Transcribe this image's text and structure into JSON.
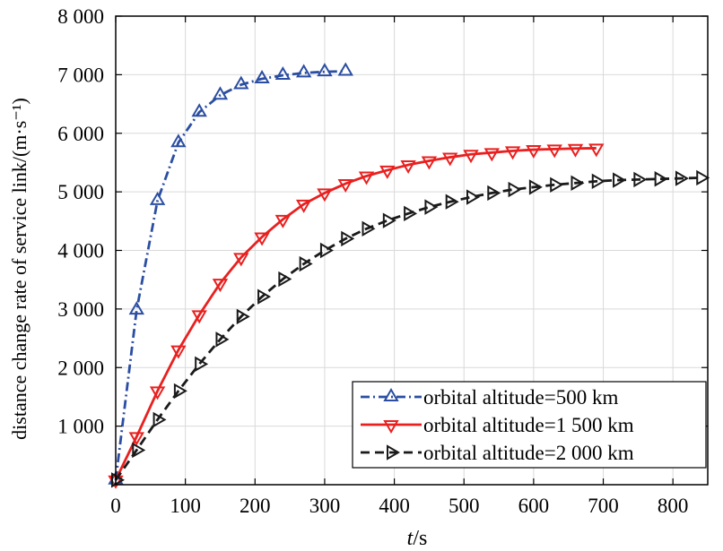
{
  "chart_data": {
    "type": "line",
    "xlabel_italic": "t",
    "xlabel_unit": "/s",
    "ylabel": "distance change rate of service link/(m·s⁻¹)",
    "xlim": [
      0,
      850
    ],
    "ylim": [
      0,
      8000
    ],
    "x_ticks": [
      0,
      100,
      200,
      300,
      400,
      500,
      600,
      700,
      800
    ],
    "y_ticks": [
      1000,
      2000,
      3000,
      4000,
      5000,
      6000,
      7000,
      8000
    ],
    "x_tick_labels": [
      "0",
      "100",
      "200",
      "300",
      "400",
      "500",
      "600",
      "700",
      "800"
    ],
    "y_tick_labels": [
      "1 000",
      "2 000",
      "3 000",
      "4 000",
      "5 000",
      "6 000",
      "7 000",
      "8 000"
    ],
    "grid": true,
    "legend_position": "bottom-right",
    "series": [
      {
        "name": "orbital altitude=500 km",
        "color": "#2b4ea2",
        "line_style": "dash-dot",
        "marker": "triangle-up",
        "x": [
          0,
          30,
          60,
          90,
          120,
          150,
          180,
          210,
          240,
          270,
          300,
          330
        ],
        "y": [
          80,
          2980,
          4850,
          5840,
          6360,
          6650,
          6830,
          6930,
          6990,
          7030,
          7050,
          7060
        ]
      },
      {
        "name": "orbital altitude=1 500 km",
        "color": "#e8201f",
        "line_style": "solid",
        "marker": "triangle-down",
        "x": [
          0,
          30,
          60,
          90,
          120,
          150,
          180,
          210,
          240,
          270,
          300,
          330,
          360,
          390,
          420,
          450,
          480,
          510,
          540,
          570,
          600,
          630,
          660,
          690
        ],
        "y": [
          80,
          820,
          1600,
          2300,
          2900,
          3440,
          3880,
          4230,
          4530,
          4790,
          4980,
          5140,
          5270,
          5370,
          5460,
          5530,
          5590,
          5640,
          5670,
          5700,
          5720,
          5730,
          5740,
          5745
        ]
      },
      {
        "name": "orbital altitude=2 000 km",
        "color": "#1a1a1a",
        "line_style": "dashed",
        "marker": "triangle-right",
        "x": [
          0,
          30,
          60,
          90,
          120,
          150,
          180,
          210,
          240,
          270,
          300,
          330,
          360,
          390,
          420,
          450,
          480,
          510,
          540,
          570,
          600,
          630,
          660,
          690,
          720,
          750,
          780,
          810,
          840
        ],
        "y": [
          80,
          590,
          1110,
          1600,
          2060,
          2480,
          2870,
          3210,
          3510,
          3770,
          4000,
          4200,
          4370,
          4510,
          4630,
          4740,
          4830,
          4910,
          4980,
          5040,
          5080,
          5120,
          5150,
          5180,
          5200,
          5210,
          5220,
          5230,
          5240
        ]
      }
    ]
  }
}
